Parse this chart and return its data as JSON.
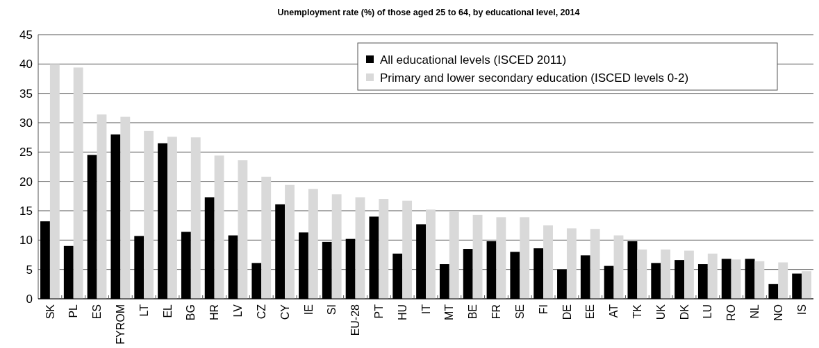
{
  "chart_data": {
    "type": "bar",
    "title": "Unemployment rate (%) of those aged 25 to 64, by educational level, 2014",
    "categories": [
      "SK",
      "PL",
      "ES",
      "FYROM",
      "LT",
      "EL",
      "BG",
      "HR",
      "LV",
      "CZ",
      "CY",
      "IE",
      "SI",
      "EU-28",
      "PT",
      "HU",
      "IT",
      "MT",
      "BE",
      "FR",
      "SE",
      "FI",
      "DE",
      "EE",
      "AT",
      "TK",
      "UK",
      "DK",
      "LU",
      "RO",
      "NL",
      "NO",
      "IS"
    ],
    "series": [
      {
        "name": "All educational levels (ISCED 2011)",
        "color": "#000000",
        "values": [
          13.2,
          9.0,
          24.5,
          28.0,
          10.7,
          26.5,
          11.4,
          17.3,
          10.8,
          6.1,
          16.1,
          11.3,
          9.7,
          10.2,
          14.0,
          7.7,
          12.7,
          5.9,
          8.5,
          9.8,
          8.0,
          8.6,
          5.0,
          7.4,
          5.6,
          9.8,
          6.1,
          6.6,
          5.9,
          6.8,
          6.8,
          2.5,
          4.3
        ]
      },
      {
        "name": "Primary and lower secondary education (ISCED levels 0-2)",
        "color": "#d9d9d9",
        "values": [
          40.0,
          39.4,
          31.4,
          31.0,
          28.6,
          27.6,
          27.5,
          24.4,
          23.6,
          20.8,
          19.4,
          18.7,
          17.8,
          17.3,
          17.0,
          16.7,
          15.2,
          14.8,
          14.3,
          13.9,
          13.9,
          12.5,
          12.0,
          11.9,
          10.8,
          8.4,
          8.4,
          8.2,
          7.7,
          6.7,
          6.4,
          6.2,
          4.7
        ]
      }
    ],
    "ylim": [
      0,
      45
    ],
    "yticks": [
      0,
      5,
      10,
      15,
      20,
      25,
      30,
      35,
      40,
      45
    ],
    "grid": "y",
    "legend": "top right"
  }
}
